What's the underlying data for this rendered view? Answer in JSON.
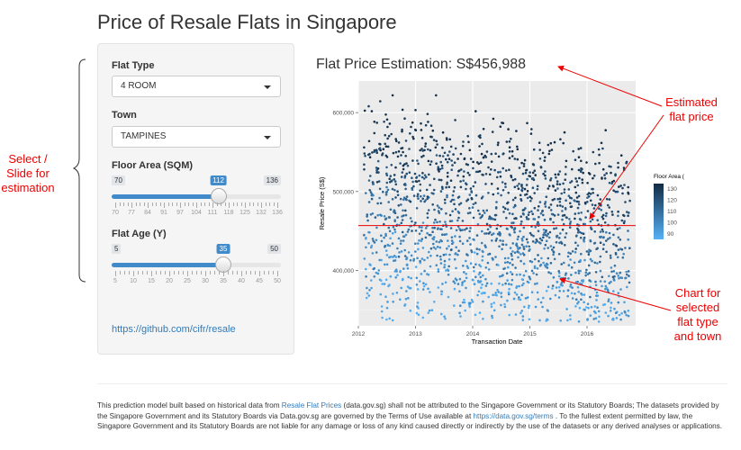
{
  "app_title": "Price of Resale Flats in Singapore",
  "sidebar": {
    "flat_type": {
      "label": "Flat Type",
      "value": "4 ROOM"
    },
    "town": {
      "label": "Town",
      "value": "TAMPINES"
    },
    "floor_area": {
      "label": "Floor Area (SQM)",
      "min": 70,
      "max": 136,
      "value": 112,
      "tick_labels": [
        "70",
        "77",
        "84",
        "91",
        "97",
        "104",
        "111",
        "118",
        "125",
        "132",
        "136"
      ]
    },
    "flat_age": {
      "label": "Flat Age (Y)",
      "min": 5,
      "max": 50,
      "value": 35,
      "tick_labels": [
        "5",
        "10",
        "15",
        "20",
        "25",
        "30",
        "35",
        "40",
        "45",
        "50"
      ]
    },
    "link": "https://github.com/cifr/resale"
  },
  "chart_title": "Flat Price Estimation: S$456,988",
  "annotations": {
    "left": "Select /\nSlide for\nestimation",
    "estimated": "Estimated\nflat price",
    "chart": "Chart for\nselected\nflat type\nand town"
  },
  "footer": {
    "p1": "This prediction model built based on historical data from ",
    "link1": "Resale Flat Prices",
    "p2": " (data.gov.sg) shall not be attributed to the Singapore Government or its Statutory Boards; The datasets provided by the Singapore Government and its Statutory Boards via Data.gov.sg are governed by the Terms of Use available at ",
    "link2": "https://data.gov.sg/terms",
    "p3": " . To the fullest extent permitted by law, the Singapore Government and its Statutory Boards are not liable for any damage or loss of any kind caused directly or indirectly by the use of the datasets or any derived analyses or applications."
  },
  "colors": {
    "accent": "#428bca",
    "annotation": "#e00000",
    "point_low": "#56b1f7",
    "point_high": "#132b43"
  },
  "chart_data": {
    "type": "scatter",
    "title": "",
    "xlabel": "Transaction Date",
    "ylabel": "Resale Price (S$)",
    "x_ticks": [
      "2012",
      "2013",
      "2014",
      "2015",
      "2016"
    ],
    "y_ticks": [
      "400,000",
      "500,000",
      "600,000"
    ],
    "ylim": [
      330000,
      640000
    ],
    "xlim": [
      2012.0,
      2016.85
    ],
    "hline": 456988,
    "legend": {
      "title": "Floor Area (SQM)",
      "values": [
        "130",
        "120",
        "110",
        "100",
        "90"
      ],
      "placement": "right"
    },
    "series": [
      {
        "x_range": [
          2012.1,
          2016.75
        ],
        "y_center": 460000,
        "note_count": 2000
      }
    ]
  }
}
